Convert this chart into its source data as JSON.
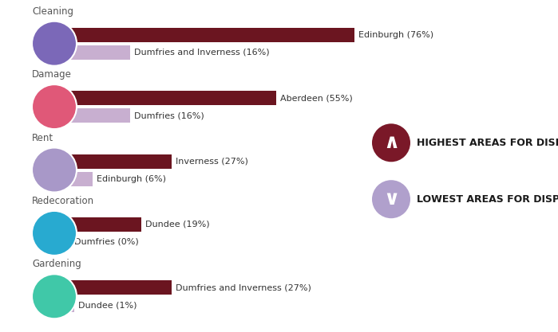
{
  "categories": [
    "Cleaning",
    "Damage",
    "Rent",
    "Redecoration",
    "Gardening"
  ],
  "high_values": [
    76,
    55,
    27,
    19,
    27
  ],
  "low_values": [
    16,
    16,
    6,
    0,
    1
  ],
  "high_labels": [
    "Edinburgh (76%)",
    "Aberdeen (55%)",
    "Inverness (27%)",
    "Dundee (19%)",
    "Dumfries and Inverness (27%)"
  ],
  "low_labels": [
    "Dumfries and Inverness (16%)",
    "Dumfries (16%)",
    "Edinburgh (6%)",
    "Dumfries (0%)",
    "Dundee (1%)"
  ],
  "bar_high_color": "#6b1520",
  "bar_low_color": "#c8afd0",
  "icon_colors": [
    "#7b68b8",
    "#e05878",
    "#a898c8",
    "#28aad0",
    "#40c8a8"
  ],
  "legend_high_color": "#7a1828",
  "legend_low_color": "#b0a0cc",
  "background_color": "#ffffff",
  "max_value": 80,
  "label_fontsize": 8,
  "category_fontsize": 8.5,
  "legend_fontsize": 9,
  "fig_width": 6.99,
  "fig_height": 4.17,
  "dpi": 100
}
